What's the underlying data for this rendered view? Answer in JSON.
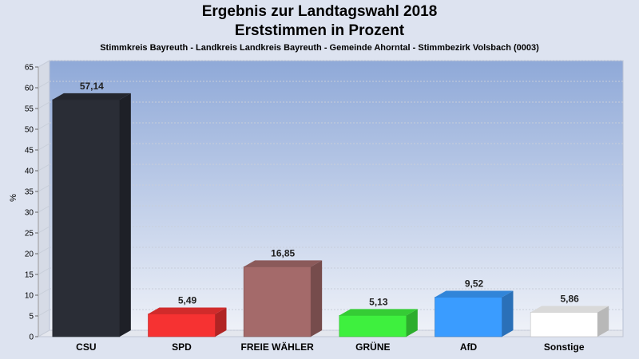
{
  "chart_data": {
    "type": "bar",
    "title": "Ergebnis zur Landtagswahl 2018",
    "subtitle": "Erststimmen in Prozent",
    "caption": "Stimmkreis Bayreuth - Landkreis Landkreis Bayreuth - Gemeinde Ahorntal - Stimmbezirk Volsbach (0003)",
    "ylabel": "%",
    "ylim": [
      0,
      65
    ],
    "yticks": [
      0,
      5,
      10,
      15,
      20,
      25,
      30,
      35,
      40,
      45,
      50,
      55,
      60,
      65
    ],
    "grid": true,
    "categories": [
      "CSU",
      "SPD",
      "FREIE WÄHLER",
      "GRÜNE",
      "AfD",
      "Sonstige"
    ],
    "values": [
      57.14,
      5.49,
      16.85,
      5.13,
      9.52,
      5.86
    ],
    "value_labels": [
      "57,14",
      "5,49",
      "16,85",
      "5,13",
      "9,52",
      "5,86"
    ],
    "colors": [
      "#2a2d36",
      "#f63232",
      "#a46a6a",
      "#3ef03e",
      "#3a9cff",
      "#ffffff"
    ]
  }
}
